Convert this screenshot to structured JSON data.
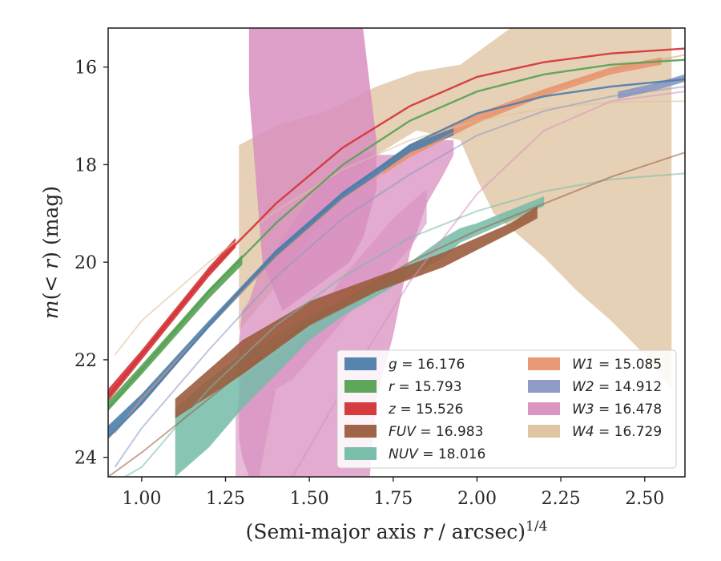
{
  "chart_data": {
    "type": "area",
    "xlabel": "(Semi-major axis r / arcsec)^1/4",
    "ylabel": "m(< r) (mag)",
    "xlim": [
      0.9,
      2.62
    ],
    "ylim": [
      24.4,
      15.2
    ],
    "y_inverted": true,
    "grid": false,
    "legend_placement": "lower-right",
    "xticks": [
      "1.00",
      "1.25",
      "1.50",
      "1.75",
      "2.00",
      "2.25",
      "2.50"
    ],
    "yticks": [
      "16",
      "18",
      "20",
      "22",
      "24"
    ],
    "series": [
      {
        "name": "g = 16.176",
        "label_var": "g",
        "label_val": "16.176",
        "color": "#4c7eaa",
        "faint_line": [
          [
            0.9,
            23.6
          ],
          [
            1.0,
            22.9
          ],
          [
            1.2,
            21.3
          ],
          [
            1.4,
            19.8
          ],
          [
            1.6,
            18.6
          ],
          [
            1.8,
            17.6
          ],
          [
            2.0,
            16.95
          ],
          [
            2.2,
            16.6
          ],
          [
            2.4,
            16.4
          ],
          [
            2.62,
            16.25
          ]
        ],
        "band_x": [
          0.9,
          1.0,
          1.2,
          1.4,
          1.6,
          1.8,
          1.93
        ],
        "band_upper": [
          23.35,
          22.7,
          21.2,
          19.75,
          18.55,
          17.6,
          17.25
        ],
        "band_lower": [
          23.6,
          22.9,
          21.35,
          19.9,
          18.7,
          17.75,
          17.4
        ]
      },
      {
        "name": "r = 15.793",
        "label_var": "r",
        "label_val": "15.793",
        "color": "#55a153",
        "faint_line": [
          [
            0.9,
            23.0
          ],
          [
            1.0,
            22.2
          ],
          [
            1.2,
            20.6
          ],
          [
            1.4,
            19.2
          ],
          [
            1.6,
            18.0
          ],
          [
            1.8,
            17.1
          ],
          [
            2.0,
            16.5
          ],
          [
            2.2,
            16.15
          ],
          [
            2.4,
            15.95
          ],
          [
            2.62,
            15.85
          ]
        ],
        "band_x": [
          0.9,
          1.0,
          1.2,
          1.3
        ],
        "band_upper": [
          22.85,
          22.1,
          20.55,
          19.85
        ],
        "band_lower": [
          23.05,
          22.3,
          20.75,
          20.05
        ]
      },
      {
        "name": "z = 15.526",
        "label_var": "z",
        "label_val": "15.526",
        "color": "#d43235",
        "faint_line": [
          [
            0.9,
            22.75
          ],
          [
            1.0,
            21.9
          ],
          [
            1.2,
            20.2
          ],
          [
            1.4,
            18.8
          ],
          [
            1.6,
            17.65
          ],
          [
            1.8,
            16.8
          ],
          [
            2.0,
            16.2
          ],
          [
            2.2,
            15.9
          ],
          [
            2.4,
            15.72
          ],
          [
            2.62,
            15.62
          ]
        ],
        "band_x": [
          0.9,
          1.0,
          1.2,
          1.28
        ],
        "band_upper": [
          22.6,
          21.8,
          20.1,
          19.5
        ],
        "band_lower": [
          22.85,
          22.0,
          20.3,
          19.7
        ]
      },
      {
        "name": "FUV = 16.983",
        "label_var": "FUV",
        "label_val": "16.983",
        "color": "#9b5c3e",
        "faint_line": [
          [
            0.9,
            24.4
          ],
          [
            1.0,
            23.9
          ],
          [
            1.2,
            22.8
          ],
          [
            1.4,
            21.7
          ],
          [
            1.6,
            20.8
          ],
          [
            1.8,
            20.0
          ],
          [
            2.0,
            19.35
          ],
          [
            2.2,
            18.8
          ],
          [
            2.4,
            18.25
          ],
          [
            2.62,
            17.75
          ]
        ],
        "band_x": [
          1.1,
          1.3,
          1.5,
          1.7,
          1.9,
          2.1,
          2.18
        ],
        "band_upper": [
          22.8,
          21.6,
          20.8,
          20.3,
          19.8,
          19.2,
          18.85
        ],
        "band_lower": [
          23.2,
          22.3,
          21.3,
          20.6,
          20.1,
          19.4,
          19.1
        ]
      },
      {
        "name": "NUV = 18.016",
        "label_var": "NUV",
        "label_val": "18.016",
        "color": "#74bba8",
        "faint_line": [
          [
            0.95,
            24.4
          ],
          [
            1.0,
            24.2
          ],
          [
            1.2,
            22.6
          ],
          [
            1.4,
            21.3
          ],
          [
            1.6,
            20.3
          ],
          [
            1.8,
            19.5
          ],
          [
            2.0,
            18.95
          ],
          [
            2.2,
            18.55
          ],
          [
            2.4,
            18.3
          ],
          [
            2.62,
            18.18
          ]
        ],
        "band_x": [
          1.1,
          1.2,
          1.3,
          1.4,
          1.5,
          1.6,
          1.7,
          1.8,
          1.9,
          1.95,
          2.0,
          2.2
        ],
        "band_upper": [
          23.0,
          22.4,
          21.9,
          21.5,
          21.1,
          20.8,
          20.4,
          20.0,
          19.5,
          19.3,
          19.2,
          18.65
        ],
        "band_lower": [
          24.4,
          23.8,
          23.0,
          22.3,
          21.6,
          21.1,
          20.7,
          20.3,
          19.9,
          19.6,
          19.45,
          18.85
        ]
      },
      {
        "name": "W1 = 15.085",
        "label_var": "W1",
        "label_val": "15.085",
        "color": "#e89671",
        "faint_line": [
          [
            0.92,
            23.5
          ],
          [
            1.0,
            22.8
          ],
          [
            1.2,
            21.3
          ],
          [
            1.4,
            19.9
          ],
          [
            1.6,
            18.7
          ],
          [
            1.8,
            17.8
          ],
          [
            2.0,
            17.1
          ],
          [
            2.2,
            16.5
          ],
          [
            2.4,
            16.05
          ],
          [
            2.62,
            15.75
          ]
        ],
        "band_x": [
          1.72,
          1.8,
          2.0,
          2.2,
          2.4,
          2.55
        ],
        "band_upper": [
          18.0,
          17.6,
          16.95,
          16.45,
          16.0,
          15.8
        ],
        "band_lower": [
          18.2,
          17.85,
          17.15,
          16.6,
          16.15,
          15.95
        ]
      },
      {
        "name": "W2 = 14.912",
        "label_var": "W2",
        "label_val": "14.912",
        "color": "#8a97c2",
        "faint_line": [
          [
            0.92,
            24.2
          ],
          [
            1.0,
            23.4
          ],
          [
            1.2,
            21.8
          ],
          [
            1.4,
            20.3
          ],
          [
            1.6,
            19.1
          ],
          [
            1.8,
            18.2
          ],
          [
            2.0,
            17.4
          ],
          [
            2.2,
            16.9
          ],
          [
            2.4,
            16.6
          ],
          [
            2.62,
            16.4
          ]
        ],
        "band_x": [
          2.42,
          2.52,
          2.62
        ],
        "band_upper": [
          16.5,
          16.35,
          16.15
        ],
        "band_lower": [
          16.65,
          16.5,
          16.3
        ]
      },
      {
        "name": "W3 = 16.478",
        "label_var": "W3",
        "label_val": "16.478",
        "color": "#d88fbf",
        "faint_line": [
          [
            1.3,
            26.0
          ],
          [
            1.45,
            24.4
          ],
          [
            1.6,
            22.6
          ],
          [
            1.8,
            20.4
          ],
          [
            2.0,
            18.6
          ],
          [
            2.2,
            17.3
          ],
          [
            2.4,
            16.7
          ],
          [
            2.62,
            16.5
          ]
        ],
        "band_x": [
          1.29,
          1.3,
          1.32,
          1.35,
          1.4,
          1.45,
          1.5,
          1.55,
          1.6,
          1.65,
          1.68,
          1.7,
          1.75,
          1.8,
          1.85,
          1.9,
          1.93
        ],
        "band_upper": [
          21.6,
          21.0,
          20.8,
          20.2,
          19.7,
          19.2,
          18.7,
          18.3,
          18.0,
          17.8,
          17.75,
          17.8,
          17.8,
          17.7,
          17.6,
          17.5,
          17.5
        ],
        "band_lower": [
          23.6,
          24.0,
          24.4,
          24.4,
          24.4,
          24.4,
          24.4,
          24.4,
          24.4,
          24.4,
          24.4,
          22.8,
          21.5,
          19.8,
          18.8,
          18.2,
          17.8
        ],
        "band2_x": [
          1.28,
          1.3,
          1.35,
          1.4,
          1.45,
          1.5,
          1.55,
          1.6,
          1.65,
          1.7,
          1.75,
          1.8,
          1.85
        ],
        "band2_upper": [
          23.2,
          22.4,
          22.1,
          21.9,
          21.7,
          21.4,
          20.8,
          20.3,
          19.9,
          19.5,
          19.1,
          18.8,
          18.5
        ],
        "band2_lower": [
          24.4,
          24.4,
          24.4,
          22.6,
          22.4,
          22.0,
          21.6,
          21.2,
          20.8,
          20.5,
          20.1,
          19.7,
          19.2
        ],
        "spike_x": [
          1.32,
          1.36,
          1.42,
          1.52,
          1.62,
          1.66,
          1.7
        ],
        "spike_upper": [
          15.2,
          15.2,
          15.2,
          15.2,
          15.2,
          15.2,
          17.5
        ],
        "spike_lower": [
          16.5,
          20.0,
          21.0,
          20.5,
          20.0,
          19.5,
          18.5
        ]
      },
      {
        "name": "W4 = 16.729",
        "label_var": "W4",
        "label_val": "16.729",
        "color": "#ddc29d",
        "faint_line": [
          [
            0.92,
            21.9
          ],
          [
            1.0,
            21.2
          ],
          [
            1.2,
            20.0
          ],
          [
            1.4,
            18.95
          ],
          [
            1.6,
            18.1
          ],
          [
            1.8,
            17.5
          ],
          [
            2.0,
            17.1
          ],
          [
            2.2,
            16.85
          ],
          [
            2.4,
            16.72
          ],
          [
            2.62,
            16.7
          ]
        ],
        "band_x": [
          1.29,
          1.4,
          1.55,
          1.7,
          1.82,
          1.95,
          2.0,
          2.05,
          2.1,
          2.2,
          2.3,
          2.4,
          2.5,
          2.58
        ],
        "band_upper": [
          17.6,
          17.2,
          16.9,
          16.4,
          16.1,
          15.95,
          15.7,
          15.45,
          15.2,
          15.2,
          15.2,
          15.2,
          15.2,
          15.2
        ],
        "band_lower": [
          21.4,
          20.5,
          19.0,
          17.8,
          17.3,
          17.5,
          18.3,
          19.0,
          19.3,
          19.9,
          20.6,
          21.2,
          21.9,
          22.6
        ]
      }
    ]
  }
}
